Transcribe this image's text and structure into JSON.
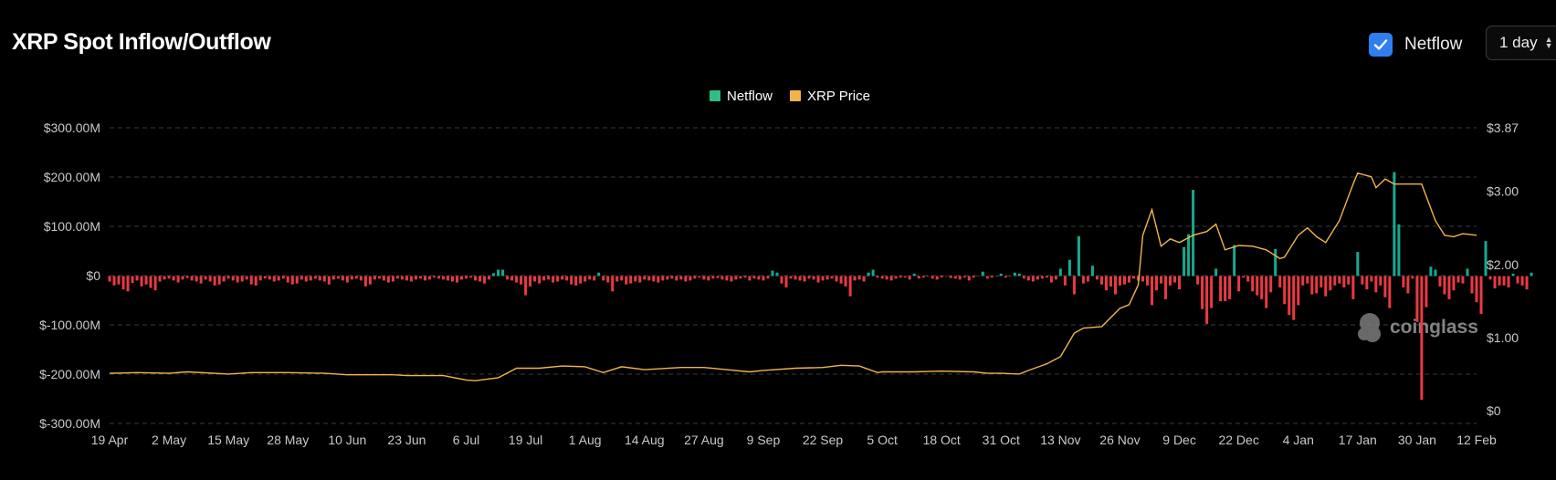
{
  "header": {
    "title": "XRP Spot Inflow/Outflow",
    "toggle_label": "Netflow",
    "toggle_checked": true,
    "interval_value": "1 day"
  },
  "watermark": {
    "text": "coinglass"
  },
  "colors": {
    "inflow": "#17a98f",
    "outflow": "#ea3943",
    "price": "#f0b54a",
    "legend_netflow": "#2ebd85",
    "legend_price": "#f0b54a",
    "accent": "#2f7ff0"
  },
  "chart_data": {
    "type": "bar",
    "title": "XRP Spot Inflow/Outflow",
    "legend": {
      "position": "top-center",
      "items": [
        {
          "name": "Netflow",
          "color": "#2ebd85"
        },
        {
          "name": "XRP Price",
          "color": "#f0b54a"
        }
      ]
    },
    "grid": true,
    "x_range": [
      "2024-04-19",
      "2025-02-12"
    ],
    "x_tick_labels": [
      "19 Apr",
      "2 May",
      "15 May",
      "28 May",
      "10 Jun",
      "23 Jun",
      "6 Jul",
      "19 Jul",
      "1 Aug",
      "14 Aug",
      "27 Aug",
      "9 Sep",
      "22 Sep",
      "5 Oct",
      "18 Oct",
      "31 Oct",
      "13 Nov",
      "26 Nov",
      "9 Dec",
      "22 Dec",
      "4 Jan",
      "17 Jan",
      "30 Jan",
      "12 Feb"
    ],
    "y_left": {
      "label": "",
      "unit": "USD",
      "range": [
        -300000000,
        300000000
      ],
      "tick_labels": [
        "$300.00M",
        "$200.00M",
        "$100.00M",
        "$0",
        "$-100.00M",
        "$-200.00M",
        "$-300.00M"
      ]
    },
    "y_right": {
      "label": "",
      "unit": "USD",
      "range": [
        0,
        3.87
      ],
      "ticks": [
        0,
        1.0,
        2.0,
        3.0,
        3.87
      ],
      "tick_labels": [
        "$0",
        "$1.00",
        "$2.00",
        "$3.00",
        "$3.87"
      ]
    },
    "series": [
      {
        "name": "Netflow",
        "type": "bar",
        "axis": "left",
        "unit": "USD M",
        "start_date": "2024-04-19",
        "interval": "1 day",
        "values": [
          -12,
          -20,
          -18,
          -28,
          -32,
          -15,
          -10,
          -22,
          -18,
          -25,
          -30,
          -12,
          -8,
          -6,
          -10,
          -14,
          -8,
          -5,
          -10,
          -12,
          -16,
          -8,
          -12,
          -20,
          -18,
          -12,
          -6,
          -10,
          -14,
          -12,
          -8,
          -18,
          -20,
          -10,
          -6,
          -8,
          -12,
          -10,
          -6,
          -14,
          -18,
          -16,
          -8,
          -12,
          -10,
          -6,
          -10,
          -12,
          -18,
          -8,
          -6,
          -10,
          -14,
          -8,
          -6,
          -10,
          -22,
          -18,
          -8,
          -6,
          -10,
          -14,
          -12,
          -6,
          -8,
          -10,
          -12,
          -8,
          -6,
          -10,
          -8,
          -4,
          -6,
          -8,
          -10,
          -12,
          -14,
          -8,
          -6,
          -4,
          -10,
          -12,
          -16,
          -8,
          5,
          12,
          12,
          -8,
          -10,
          -14,
          -18,
          -40,
          -22,
          -12,
          -16,
          -10,
          -8,
          -14,
          -12,
          -8,
          -10,
          -18,
          -20,
          -16,
          -12,
          -8,
          -10,
          6,
          -10,
          -14,
          -32,
          -12,
          -10,
          -18,
          -16,
          -12,
          -14,
          -8,
          -10,
          -12,
          -14,
          -10,
          -8,
          -6,
          -10,
          -8,
          -12,
          -10,
          -6,
          -4,
          -8,
          -10,
          -6,
          -5,
          -8,
          -10,
          -12,
          -8,
          -6,
          -4,
          -10,
          -6,
          -8,
          -10,
          -6,
          10,
          6,
          -16,
          -24,
          -6,
          -8,
          -10,
          -12,
          -6,
          -8,
          -14,
          -10,
          -8,
          -6,
          -12,
          -16,
          -22,
          -42,
          -10,
          -8,
          -12,
          6,
          12,
          -4,
          -6,
          -8,
          -10,
          -6,
          -4,
          -4,
          -8,
          4,
          -6,
          -4,
          -2,
          -6,
          -8,
          -4,
          -2,
          -5,
          -6,
          -8,
          -4,
          -10,
          -4,
          -2,
          8,
          -6,
          -4,
          -2,
          4,
          -4,
          -2,
          6,
          4,
          -6,
          -10,
          -12,
          -8,
          -6,
          -4,
          -14,
          -8,
          14,
          -20,
          32,
          -38,
          80,
          -16,
          -12,
          20,
          -8,
          -18,
          -30,
          -22,
          -38,
          -20,
          -18,
          -14,
          -6,
          -10,
          -12,
          -20,
          -60,
          -30,
          -16,
          -48,
          -20,
          -14,
          -28,
          58,
          84,
          174,
          -18,
          -68,
          -98,
          -66,
          14,
          -52,
          -52,
          -48,
          62,
          -32,
          -4,
          -12,
          -32,
          -40,
          -48,
          -66,
          -34,
          54,
          -24,
          -58,
          -80,
          -90,
          -60,
          -20,
          -16,
          -38,
          -36,
          -24,
          -42,
          -30,
          -20,
          -16,
          -24,
          -18,
          -48,
          48,
          -18,
          -28,
          -12,
          -34,
          -20,
          -44,
          -66,
          210,
          104,
          -24,
          -36,
          -6,
          -94,
          -252,
          -64,
          18,
          12,
          -22,
          -38,
          -48,
          -30,
          -14,
          -16,
          14,
          -36,
          -54,
          -78,
          70,
          -8,
          -26,
          -20,
          -20,
          -24,
          4,
          -16,
          -20,
          -28,
          6
        ]
      },
      {
        "name": "XRP Price",
        "type": "line",
        "axis": "right",
        "unit": "USD",
        "points": [
          [
            "2024-04-19",
            0.51
          ],
          [
            "2024-04-25",
            0.52
          ],
          [
            "2024-05-02",
            0.51
          ],
          [
            "2024-05-06",
            0.53
          ],
          [
            "2024-05-15",
            0.5
          ],
          [
            "2024-05-20",
            0.52
          ],
          [
            "2024-05-28",
            0.52
          ],
          [
            "2024-06-05",
            0.51
          ],
          [
            "2024-06-10",
            0.49
          ],
          [
            "2024-06-20",
            0.49
          ],
          [
            "2024-06-23",
            0.48
          ],
          [
            "2024-07-01",
            0.48
          ],
          [
            "2024-07-06",
            0.42
          ],
          [
            "2024-07-08",
            0.41
          ],
          [
            "2024-07-13",
            0.45
          ],
          [
            "2024-07-17",
            0.58
          ],
          [
            "2024-07-22",
            0.58
          ],
          [
            "2024-07-27",
            0.61
          ],
          [
            "2024-08-01",
            0.6
          ],
          [
            "2024-08-05",
            0.52
          ],
          [
            "2024-08-09",
            0.6
          ],
          [
            "2024-08-14",
            0.56
          ],
          [
            "2024-08-22",
            0.59
          ],
          [
            "2024-08-27",
            0.59
          ],
          [
            "2024-09-01",
            0.56
          ],
          [
            "2024-09-06",
            0.53
          ],
          [
            "2024-09-09",
            0.55
          ],
          [
            "2024-09-16",
            0.58
          ],
          [
            "2024-09-22",
            0.59
          ],
          [
            "2024-09-26",
            0.62
          ],
          [
            "2024-09-30",
            0.61
          ],
          [
            "2024-10-04",
            0.52
          ],
          [
            "2024-10-05",
            0.53
          ],
          [
            "2024-10-12",
            0.53
          ],
          [
            "2024-10-18",
            0.54
          ],
          [
            "2024-10-25",
            0.53
          ],
          [
            "2024-10-28",
            0.51
          ],
          [
            "2024-10-31",
            0.51
          ],
          [
            "2024-11-04",
            0.5
          ],
          [
            "2024-11-06",
            0.55
          ],
          [
            "2024-11-10",
            0.64
          ],
          [
            "2024-11-13",
            0.74
          ],
          [
            "2024-11-16",
            1.06
          ],
          [
            "2024-11-18",
            1.13
          ],
          [
            "2024-11-22",
            1.15
          ],
          [
            "2024-11-26",
            1.4
          ],
          [
            "2024-11-28",
            1.45
          ],
          [
            "2024-11-30",
            1.72
          ],
          [
            "2024-12-01",
            2.4
          ],
          [
            "2024-12-03",
            2.75
          ],
          [
            "2024-12-05",
            2.25
          ],
          [
            "2024-12-07",
            2.35
          ],
          [
            "2024-12-09",
            2.3
          ],
          [
            "2024-12-12",
            2.4
          ],
          [
            "2024-12-15",
            2.45
          ],
          [
            "2024-12-17",
            2.55
          ],
          [
            "2024-12-19",
            2.2
          ],
          [
            "2024-12-22",
            2.26
          ],
          [
            "2024-12-25",
            2.25
          ],
          [
            "2024-12-28",
            2.2
          ],
          [
            "2024-12-31",
            2.08
          ],
          [
            "2025-01-01",
            2.1
          ],
          [
            "2025-01-04",
            2.4
          ],
          [
            "2025-01-06",
            2.5
          ],
          [
            "2025-01-08",
            2.38
          ],
          [
            "2025-01-10",
            2.3
          ],
          [
            "2025-01-13",
            2.6
          ],
          [
            "2025-01-16",
            3.1
          ],
          [
            "2025-01-17",
            3.25
          ],
          [
            "2025-01-20",
            3.2
          ],
          [
            "2025-01-21",
            3.05
          ],
          [
            "2025-01-23",
            3.17
          ],
          [
            "2025-01-25",
            3.1
          ],
          [
            "2025-01-27",
            3.1
          ],
          [
            "2025-01-31",
            3.1
          ],
          [
            "2025-02-03",
            2.6
          ],
          [
            "2025-02-05",
            2.4
          ],
          [
            "2025-02-07",
            2.38
          ],
          [
            "2025-02-09",
            2.42
          ],
          [
            "2025-02-12",
            2.4
          ]
        ]
      }
    ]
  }
}
